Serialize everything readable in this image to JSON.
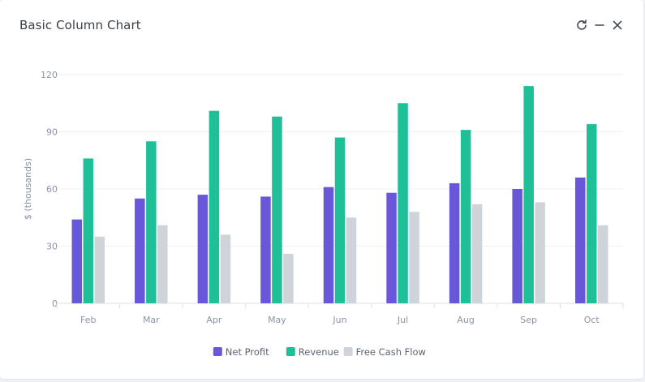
{
  "card": {
    "title": "Basic Column Chart",
    "tools": [
      {
        "name": "refresh",
        "icon": "refresh-icon"
      },
      {
        "name": "minimize",
        "icon": "minus-icon"
      },
      {
        "name": "close",
        "icon": "close-icon"
      }
    ]
  },
  "chart_data": {
    "type": "bar",
    "title": "",
    "xlabel": "",
    "ylabel": "$ (thousands)",
    "ylim": [
      0,
      120
    ],
    "yticks": [
      0,
      30,
      60,
      90,
      120
    ],
    "grid": true,
    "legend_position": "bottom",
    "categories": [
      "Feb",
      "Mar",
      "Apr",
      "May",
      "Jun",
      "Jul",
      "Aug",
      "Sep",
      "Oct"
    ],
    "series": [
      {
        "name": "Net Profit",
        "color": "#6857d9",
        "values": [
          44,
          55,
          57,
          56,
          61,
          58,
          63,
          60,
          66
        ]
      },
      {
        "name": "Revenue",
        "color": "#1fbf97",
        "values": [
          76,
          85,
          101,
          98,
          87,
          105,
          91,
          114,
          94
        ]
      },
      {
        "name": "Free Cash Flow",
        "color": "#cfd4db",
        "values": [
          35,
          41,
          36,
          26,
          45,
          48,
          52,
          53,
          41
        ]
      }
    ]
  }
}
